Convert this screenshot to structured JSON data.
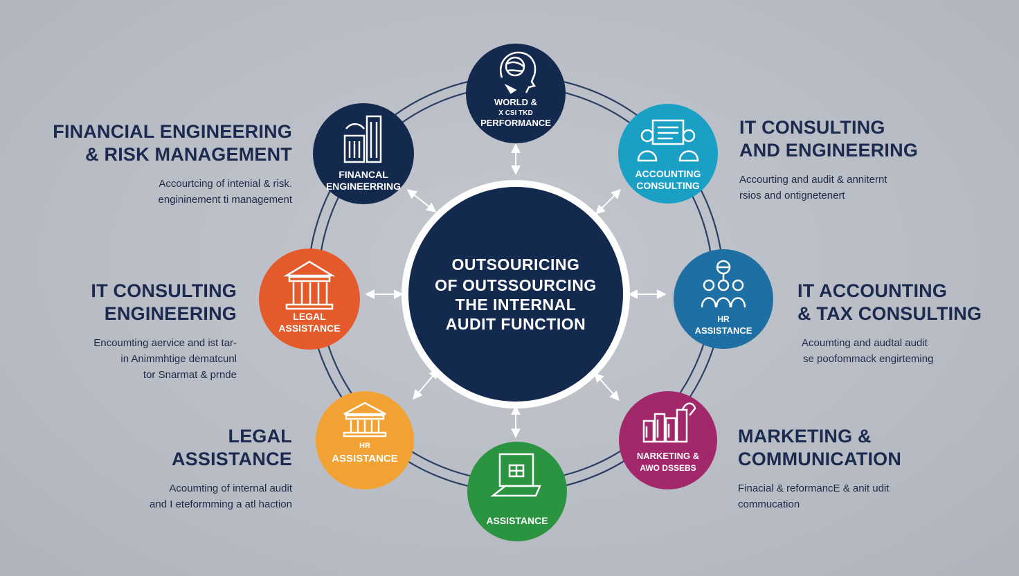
{
  "center": {
    "lines": [
      "OUTSOURICING",
      "OF OUTSSOURCING",
      "THE INTERNAL",
      "AUDIT FUNCTION"
    ],
    "color": "#13294e"
  },
  "nodes": [
    {
      "id": "top",
      "lines": [
        "WORLD &",
        "X CSI TKD",
        "PERFORMANCE"
      ],
      "color": "#13294e",
      "icon": "head-globe-icon"
    },
    {
      "id": "financial",
      "lines": [
        "FINANCAL",
        "ENGINEERRING"
      ],
      "color": "#13294e",
      "icon": "building-icon"
    },
    {
      "id": "accounting",
      "lines": [
        "ACCOUNTING",
        "CONSULTING"
      ],
      "color": "#1aa0c4",
      "icon": "consultants-icon"
    },
    {
      "id": "legal",
      "lines": [
        "LEGAL",
        "ASSISTANCE"
      ],
      "color": "#e55a2b",
      "icon": "courthouse-icon"
    },
    {
      "id": "hr-right",
      "lines": [
        "HR",
        "ASSISTANCE"
      ],
      "color": "#1e6fa3",
      "icon": "people-network-icon"
    },
    {
      "id": "hr-left",
      "lines": [
        "HR",
        "ASSISTANCE"
      ],
      "color": "#f2a233",
      "icon": "bank-icon"
    },
    {
      "id": "marketing",
      "lines": [
        "NARKETING &",
        "AWO DSSEBS"
      ],
      "color": "#a3286b",
      "icon": "city-icon"
    },
    {
      "id": "assistance",
      "lines": [
        "ASSISTANCE"
      ],
      "color": "#2a9440",
      "icon": "office-building-icon"
    }
  ],
  "side": {
    "fin": {
      "title": [
        "FINANCIAL ENGINEERING",
        "& RISK MANAGEMENT"
      ],
      "desc": [
        "Accourtcing of intenial & risk.",
        "engininement ti management"
      ]
    },
    "itce": {
      "title": [
        "IT CONSULTING",
        "ENGINEERING"
      ],
      "desc": [
        "Encoumting aervice and ist tar-",
        "in Animmhtige dematcunl",
        "tor Snarmat & prnde"
      ]
    },
    "legal": {
      "title": [
        "LEGAL",
        "ASSISTANCE"
      ],
      "desc": [
        "Acoumting of internal audit",
        "and I eteformming a atl haction"
      ]
    },
    "itcons": {
      "title": [
        "IT CONSULTING",
        "AND ENGINEERING"
      ],
      "desc": [
        "Accourting and audit & anniternt",
        "rsios and ontignetenert"
      ]
    },
    "itacct": {
      "title": [
        "IT ACCOUNTING",
        "& TAX  CONSULTING"
      ],
      "desc": [
        "Acoumting and audtal audit",
        "se poofommack engirteming"
      ]
    },
    "mkt": {
      "title": [
        "MARKETING &",
        "COMMUNICATION"
      ],
      "desc": [
        "Finacial & reformancE & anit udit",
        "commucation"
      ]
    }
  }
}
